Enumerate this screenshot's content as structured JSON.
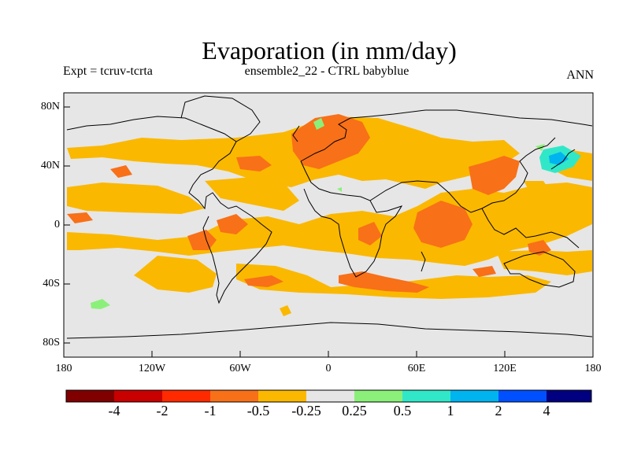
{
  "title": "Evaporation (in mm/day)",
  "subtitle_left": "Expt = tcruv-tcrta",
  "subtitle_center": "ensemble2_22 - CTRL babyblue",
  "subtitle_right": "ANN",
  "lat_labels": [
    "80N",
    "40N",
    "0",
    "40S",
    "80S"
  ],
  "lon_labels": [
    "180",
    "120W",
    "60W",
    "0",
    "60E",
    "120E",
    "180"
  ],
  "colorbar": {
    "colors": [
      "#800000",
      "#c80000",
      "#ff2a00",
      "#f87018",
      "#fbb800",
      "#e6e6e6",
      "#8bf07a",
      "#30e8c8",
      "#00b4f0",
      "#0050ff",
      "#000080"
    ],
    "labels": [
      "-4",
      "-2",
      "-1",
      "-0.5",
      "-0.25",
      "0.25",
      "0.5",
      "1",
      "2",
      "4"
    ]
  },
  "colors": {
    "neutral": "#e6e6e6",
    "yellow": "#fbb800",
    "orange": "#f87018",
    "green": "#8bf07a",
    "cyan": "#30e8c8",
    "blue": "#00b4f0"
  }
}
